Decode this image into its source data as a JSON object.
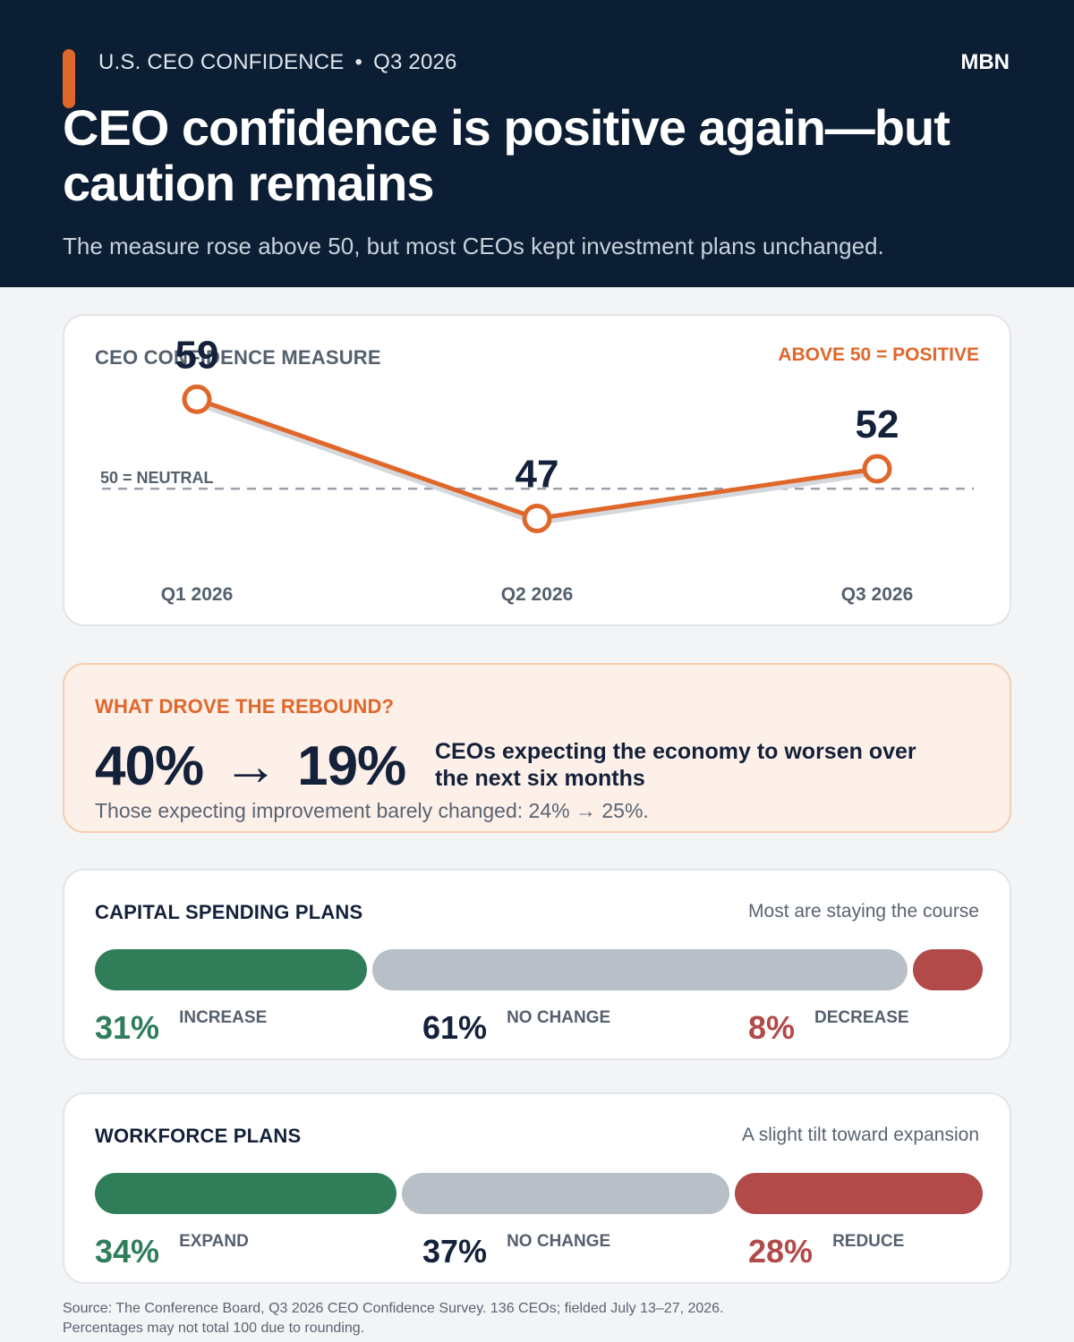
{
  "header": {
    "kicker": "U.S. CEO CONFIDENCE",
    "kicker_sep": "•",
    "period": "Q3 2026",
    "brand": "MBN",
    "headline": "CEO confidence is positive again—but caution remains",
    "subhead": "The measure rose above 50, but most CEOs kept investment plans unchanged."
  },
  "confidence_card": {
    "title": "CEO CONFIDENCE MEASURE",
    "note": "ABOVE 50 = POSITIVE",
    "neutral_label": "50 = NEUTRAL"
  },
  "driver_card": {
    "title": "WHAT DROVE THE REBOUND?",
    "from": "40%",
    "arrow": "→",
    "to": "19%",
    "description": "CEOs expecting the economy to worsen over the next six months",
    "footnote": "Those expecting improvement barely changed: 24% → 25%."
  },
  "capex_card": {
    "title": "CAPITAL SPENDING PLANS",
    "note": "Most are staying the course"
  },
  "workforce_card": {
    "title": "WORKFORCE PLANS",
    "note": "A slight tilt toward expansion"
  },
  "source": {
    "line1": "Source: The Conference Board, Q3 2026 CEO Confidence Survey. 136 CEOs; fielded July 13–27, 2026.",
    "line2": "Percentages may not total 100 due to rounding."
  },
  "colors": {
    "navy": "#0c1e33",
    "orange": "#e0672a",
    "green": "#2f7d59",
    "gray": "#b8bfc7",
    "red": "#b24a4a"
  },
  "chart_data": [
    {
      "type": "line",
      "title": "CEO CONFIDENCE MEASURE",
      "categories": [
        "Q1 2026",
        "Q2 2026",
        "Q3 2026"
      ],
      "values": [
        59,
        47,
        52
      ],
      "value_labels": [
        "59",
        "47",
        "52"
      ],
      "reference_line": {
        "value": 50,
        "label": "50 = NEUTRAL"
      },
      "ylim": [
        42,
        62
      ],
      "grid": false
    },
    {
      "type": "bar",
      "title": "CAPITAL SPENDING PLANS",
      "stacked": true,
      "orientation": "horizontal",
      "categories": [
        "INCREASE",
        "NO CHANGE",
        "DECREASE"
      ],
      "values": [
        31,
        61,
        8
      ],
      "value_labels": [
        "31%",
        "61%",
        "8%"
      ],
      "colors": [
        "#2f7d59",
        "#b8bfc7",
        "#b24a4a"
      ]
    },
    {
      "type": "bar",
      "title": "WORKFORCE PLANS",
      "stacked": true,
      "orientation": "horizontal",
      "categories": [
        "EXPAND",
        "NO CHANGE",
        "REDUCE"
      ],
      "values": [
        34,
        37,
        28
      ],
      "value_labels": [
        "34%",
        "37%",
        "28%"
      ],
      "colors": [
        "#2f7d59",
        "#b8bfc7",
        "#b24a4a"
      ]
    }
  ]
}
